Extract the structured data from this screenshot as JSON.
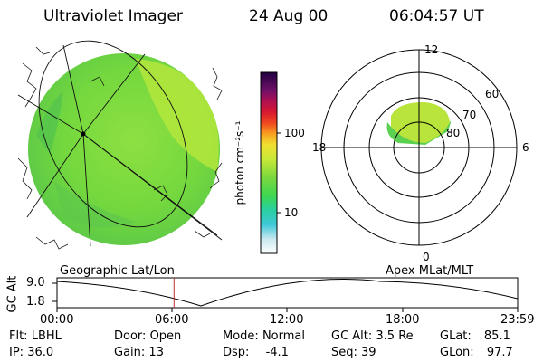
{
  "header": {
    "instrument": "Ultraviolet Imager",
    "date": "24 Aug 00",
    "time": "06:04:57 UT"
  },
  "colorbar": {
    "unit_label": "photon cm⁻²s⁻¹",
    "tick_labels": [
      "100",
      "10"
    ]
  },
  "polar_plot": {
    "mlt_labels": [
      "12",
      "18",
      "6",
      "0"
    ],
    "mlat_labels": [
      "60",
      "70",
      "80"
    ]
  },
  "timeline": {
    "left_title": "Geographic Lat/Lon",
    "right_title": "Apex MLat/MLT",
    "y_axis_label": "GC Alt",
    "y_ticks": [
      "9.0",
      "1.8"
    ],
    "x_ticks": [
      "00:00",
      "06:00",
      "12:00",
      "18:00",
      "23:59"
    ],
    "current_time_fraction": 0.254
  },
  "status": {
    "filter": {
      "label": "Flt:",
      "value": "LBHL"
    },
    "ip": {
      "label": "IP:",
      "value": "36.0"
    },
    "door": {
      "label": "Door:",
      "value": "Open"
    },
    "gain": {
      "label": "Gain:",
      "value": "13"
    },
    "mode": {
      "label": "Mode:",
      "value": "Normal"
    },
    "dsp": {
      "label": "Dsp:",
      "value": "-4.1"
    },
    "gc_alt": {
      "label": "GC Alt:",
      "value": "3.5 Re"
    },
    "seq": {
      "label": "Seq:",
      "value": "39"
    },
    "glat": {
      "label": "GLat:",
      "value": "85.1"
    },
    "glon": {
      "label": "GLon:",
      "value": "97.7"
    }
  },
  "colors": {
    "disk_fill": "#7ddc3e",
    "aurora_fill": "#a4e23a"
  }
}
